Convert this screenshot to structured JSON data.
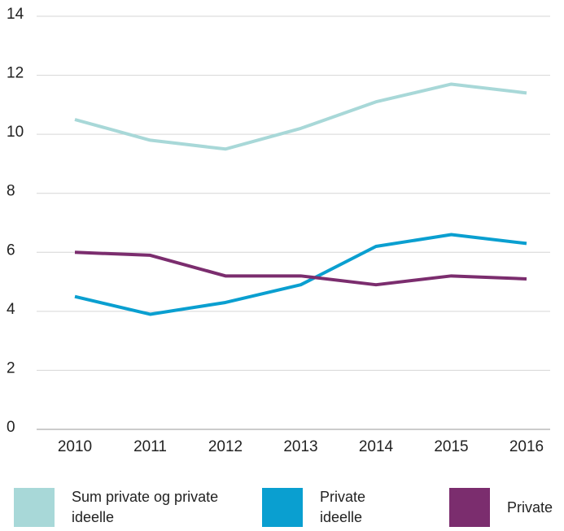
{
  "chart_data": {
    "type": "line",
    "categories": [
      "2010",
      "2011",
      "2012",
      "2013",
      "2014",
      "2015",
      "2016"
    ],
    "series": [
      {
        "name": "Sum private og private ideelle",
        "color": "#a8d8d8",
        "values": [
          10.5,
          9.8,
          9.5,
          10.2,
          11.1,
          11.7,
          11.4
        ]
      },
      {
        "name": "Private ideelle",
        "color": "#0a9fd0",
        "values": [
          4.5,
          3.9,
          4.3,
          4.9,
          6.2,
          6.6,
          6.3
        ]
      },
      {
        "name": "Private",
        "color": "#7b2d6e",
        "values": [
          6.0,
          5.9,
          5.2,
          5.2,
          4.9,
          5.2,
          5.1
        ]
      }
    ],
    "ylim": [
      0,
      14
    ],
    "yticks": [
      0,
      2,
      4,
      6,
      8,
      10,
      12,
      14
    ],
    "grid": true
  }
}
